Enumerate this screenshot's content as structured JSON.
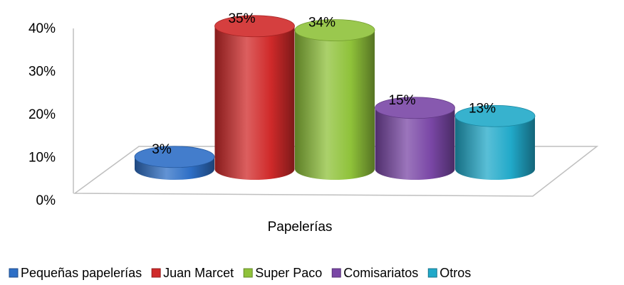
{
  "chart_data": {
    "type": "bar",
    "categories": [
      "Papelerías"
    ],
    "series": [
      {
        "name": "Pequeñas papelerías",
        "color": "#2e6fc6",
        "values": [
          3
        ],
        "value_labels": [
          "3%"
        ]
      },
      {
        "name": "Juan Marcet",
        "color": "#d02a2a",
        "values": [
          35
        ],
        "value_labels": [
          "35%"
        ]
      },
      {
        "name": "Super Paco",
        "color": "#8fc23a",
        "values": [
          34
        ],
        "value_labels": [
          "34%"
        ]
      },
      {
        "name": "Comisariatos",
        "color": "#7a47a6",
        "values": [
          15
        ],
        "value_labels": [
          "15%"
        ]
      },
      {
        "name": "Otros",
        "color": "#21a9c9",
        "values": [
          13
        ],
        "value_labels": [
          "13%"
        ]
      }
    ],
    "ylim": [
      0,
      40
    ],
    "yticks": [
      {
        "value": 0,
        "label": "0%"
      },
      {
        "value": 10,
        "label": "10%"
      },
      {
        "value": 20,
        "label": "20%"
      },
      {
        "value": 30,
        "label": "30%"
      },
      {
        "value": 40,
        "label": "40%"
      }
    ],
    "legend": "bottom"
  }
}
